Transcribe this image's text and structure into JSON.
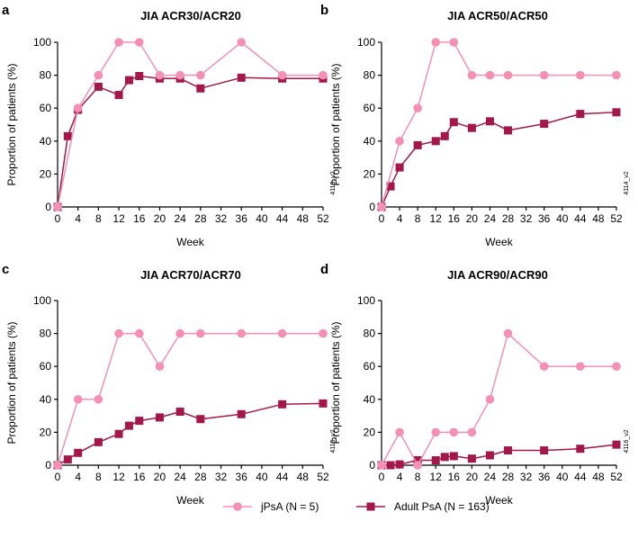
{
  "colors": {
    "jpsa": "#f590b4",
    "adult": "#a3174a",
    "axis": "#000000"
  },
  "legend": {
    "jpsa_label": "jPsA (N = 5)",
    "adult_label": "Adult PsA (N = 163)"
  },
  "chart_data": [
    {
      "type": "line",
      "panel": "a",
      "title": "JIA ACR30/ACR20",
      "xlabel": "Week",
      "ylabel": "Proportion of patients (%)",
      "xlim": [
        0,
        52
      ],
      "ylim": [
        0,
        100
      ],
      "xticks": [
        "0",
        "4",
        "8",
        "12",
        "16",
        "20",
        "24",
        "28",
        "32",
        "36",
        "40",
        "44",
        "48",
        "52"
      ],
      "yticks": [
        "0",
        "20",
        "40",
        "60",
        "80",
        "100"
      ],
      "code": "4113_v2",
      "series": [
        {
          "name": "jPsA (N = 5)",
          "marker": "circle",
          "x": [
            0,
            4,
            8,
            12,
            16,
            20,
            24,
            28,
            36,
            44,
            52
          ],
          "values": [
            0,
            60,
            80,
            100,
            100,
            80,
            80,
            80,
            100,
            80,
            80
          ]
        },
        {
          "name": "Adult PsA (N = 163)",
          "marker": "square",
          "x": [
            0,
            2,
            4,
            8,
            12,
            14,
            16,
            20,
            24,
            28,
            36,
            44,
            52
          ],
          "values": [
            0,
            43,
            59,
            73,
            68,
            77,
            79.5,
            78,
            78,
            72,
            78.5,
            78,
            78
          ]
        }
      ]
    },
    {
      "type": "line",
      "panel": "b",
      "title": "JIA ACR50/ACR50",
      "xlabel": "Week",
      "ylabel": "Proportion of patients (%)",
      "xlim": [
        0,
        52
      ],
      "ylim": [
        0,
        100
      ],
      "xticks": [
        "0",
        "4",
        "8",
        "12",
        "16",
        "20",
        "24",
        "28",
        "32",
        "36",
        "40",
        "44",
        "48",
        "52"
      ],
      "yticks": [
        "0",
        "20",
        "40",
        "60",
        "80",
        "100"
      ],
      "code": "4114_v2",
      "series": [
        {
          "name": "jPsA (N = 5)",
          "marker": "circle",
          "x": [
            0,
            4,
            8,
            12,
            16,
            20,
            24,
            28,
            36,
            44,
            52
          ],
          "values": [
            0,
            40,
            60,
            100,
            100,
            80,
            80,
            80,
            80,
            80,
            80
          ]
        },
        {
          "name": "Adult PsA (N = 163)",
          "marker": "square",
          "x": [
            0,
            2,
            4,
            8,
            12,
            14,
            16,
            20,
            24,
            28,
            36,
            44,
            52
          ],
          "values": [
            0,
            12.5,
            24,
            37.5,
            40,
            43,
            51.5,
            48,
            52,
            46.5,
            50.5,
            56.5,
            57.5
          ]
        }
      ]
    },
    {
      "type": "line",
      "panel": "c",
      "title": "JIA ACR70/ACR70",
      "xlabel": "Week",
      "ylabel": "Proportion of patients (%)",
      "xlim": [
        0,
        52
      ],
      "ylim": [
        0,
        100
      ],
      "xticks": [
        "0",
        "4",
        "8",
        "12",
        "16",
        "20",
        "24",
        "28",
        "32",
        "36",
        "40",
        "44",
        "48",
        "52"
      ],
      "yticks": [
        "0",
        "20",
        "40",
        "60",
        "80",
        "100"
      ],
      "code": "4115_v2",
      "series": [
        {
          "name": "jPsA (N = 5)",
          "marker": "circle",
          "x": [
            0,
            4,
            8,
            12,
            16,
            20,
            24,
            28,
            36,
            44,
            52
          ],
          "values": [
            0,
            40,
            40,
            80,
            80,
            60,
            80,
            80,
            80,
            80,
            80
          ]
        },
        {
          "name": "Adult PsA (N = 163)",
          "marker": "square",
          "x": [
            0,
            2,
            4,
            8,
            12,
            14,
            16,
            20,
            24,
            28,
            36,
            44,
            52
          ],
          "values": [
            0,
            3.5,
            7.5,
            14,
            19,
            24,
            27,
            29,
            32.5,
            28,
            31,
            37,
            37.5
          ]
        }
      ]
    },
    {
      "type": "line",
      "panel": "d",
      "title": "JIA ACR90/ACR90",
      "xlabel": "Week",
      "ylabel": "Proportion of patients (%)",
      "xlim": [
        0,
        52
      ],
      "ylim": [
        0,
        100
      ],
      "xticks": [
        "0",
        "4",
        "8",
        "12",
        "16",
        "20",
        "24",
        "28",
        "32",
        "36",
        "40",
        "44",
        "48",
        "52"
      ],
      "yticks": [
        "0",
        "20",
        "40",
        "60",
        "80",
        "100"
      ],
      "code": "4116_v2",
      "series": [
        {
          "name": "jPsA (N = 5)",
          "marker": "circle",
          "x": [
            0,
            4,
            8,
            12,
            16,
            20,
            24,
            28,
            36,
            44,
            52
          ],
          "values": [
            0,
            20,
            0,
            20,
            20,
            20,
            40,
            80,
            60,
            60,
            60
          ]
        },
        {
          "name": "Adult PsA (N = 163)",
          "marker": "square",
          "x": [
            0,
            2,
            4,
            8,
            12,
            14,
            16,
            20,
            24,
            28,
            36,
            44,
            52
          ],
          "values": [
            0,
            0,
            0.5,
            3,
            3,
            5,
            5.5,
            4,
            6,
            9,
            9,
            10,
            12.5
          ]
        }
      ]
    }
  ]
}
